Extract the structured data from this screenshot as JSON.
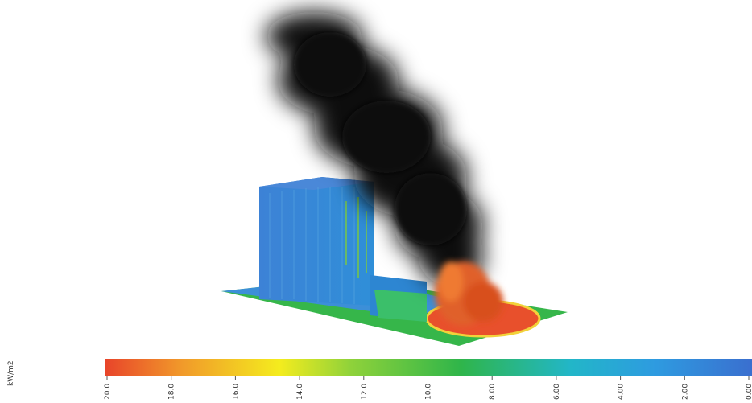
{
  "colorbar": {
    "unit": "kW/m2",
    "ticks": [
      {
        "value": 20,
        "label": "20.0"
      },
      {
        "value": 18,
        "label": "18.0"
      },
      {
        "value": 16,
        "label": "16.0"
      },
      {
        "value": 14,
        "label": "14.0"
      },
      {
        "value": 12,
        "label": "12.0"
      },
      {
        "value": 10,
        "label": "10.0"
      },
      {
        "value": 8,
        "label": "8.00"
      },
      {
        "value": 6,
        "label": "6.00"
      },
      {
        "value": 4,
        "label": "4.00"
      },
      {
        "value": 2,
        "label": "2.00"
      },
      {
        "value": 0,
        "label": "0.00"
      }
    ]
  }
}
